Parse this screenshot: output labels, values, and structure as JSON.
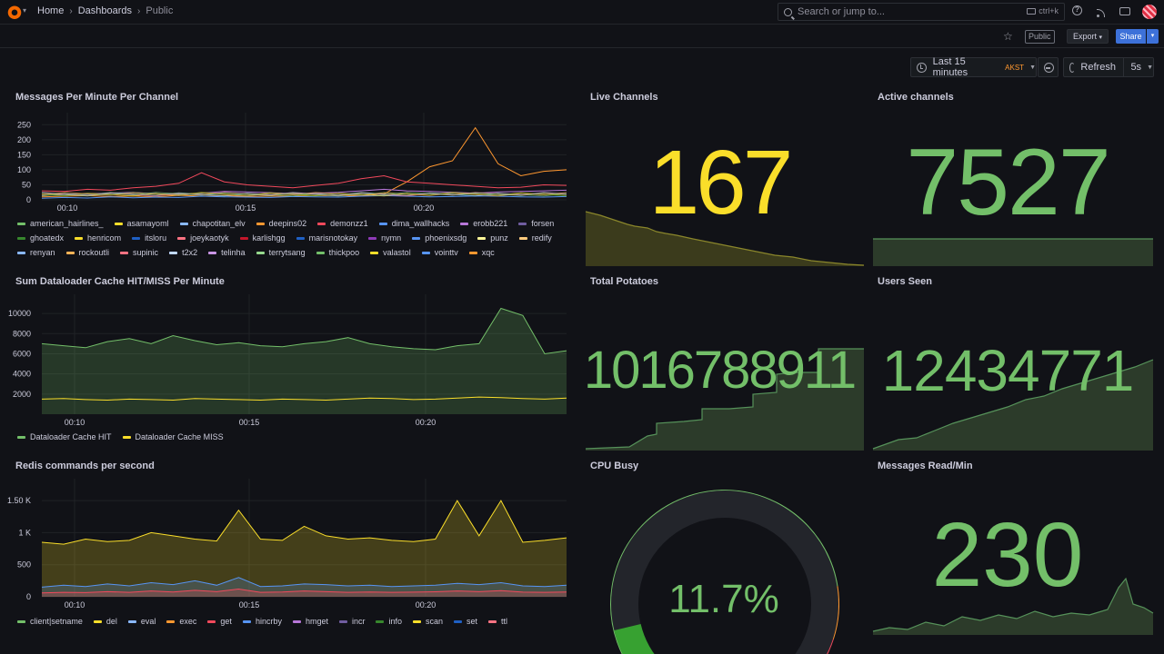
{
  "nav": {
    "breadcrumbs": [
      "Home",
      "Dashboards",
      "Public"
    ],
    "search_placeholder": "Search or jump to...",
    "search_shortcut": "ctrl+k"
  },
  "toolbar": {
    "public_badge": "Public",
    "export_label": "Export",
    "share_label": "Share"
  },
  "controls": {
    "time_range": "Last 15 minutes",
    "timezone": "AKST",
    "refresh_label": "Refresh",
    "refresh_interval": "5s"
  },
  "colors": {
    "green": "#73bf69",
    "yellow": "#fade2a",
    "orange": "#ff9830",
    "red": "#f2495c",
    "blue": "#5794f2",
    "purple": "#b877d9"
  },
  "panels": {
    "messages": {
      "title": "Messages Per Minute Per Channel",
      "legend": [
        {
          "name": "american_hairlines_",
          "color": "#73bf69"
        },
        {
          "name": "asamayoml",
          "color": "#fade2a"
        },
        {
          "name": "chapotitan_elv",
          "color": "#8ab8ff"
        },
        {
          "name": "deepins02",
          "color": "#ff9830"
        },
        {
          "name": "demonzz1",
          "color": "#f2495c"
        },
        {
          "name": "dima_wallhacks",
          "color": "#5794f2"
        },
        {
          "name": "erobb221",
          "color": "#b877d9"
        },
        {
          "name": "forsen",
          "color": "#705da0"
        },
        {
          "name": "ghoatedx",
          "color": "#37872d"
        },
        {
          "name": "henricom",
          "color": "#fade2a"
        },
        {
          "name": "itsloru",
          "color": "#1f60c4"
        },
        {
          "name": "joeykaotyk",
          "color": "#ff7383"
        },
        {
          "name": "karlishgg",
          "color": "#c4162a"
        },
        {
          "name": "marisnotokay",
          "color": "#1f60c4"
        },
        {
          "name": "nymn",
          "color": "#8f3bb8"
        },
        {
          "name": "phoenixsdg",
          "color": "#5794f2"
        },
        {
          "name": "punz",
          "color": "#fff899"
        },
        {
          "name": "redify",
          "color": "#ffcb7d"
        },
        {
          "name": "renyan",
          "color": "#8ab8ff"
        },
        {
          "name": "rockoutli",
          "color": "#ffb357"
        },
        {
          "name": "supinic",
          "color": "#ff7383"
        },
        {
          "name": "t2x2",
          "color": "#c0d8ff"
        },
        {
          "name": "telinha",
          "color": "#ca95e5"
        },
        {
          "name": "terrytsang",
          "color": "#96d98d"
        },
        {
          "name": "thickpoo",
          "color": "#73bf69"
        },
        {
          "name": "valastol",
          "color": "#fade2a"
        },
        {
          "name": "vointtv",
          "color": "#5794f2"
        },
        {
          "name": "xqc",
          "color": "#ff9830"
        }
      ]
    },
    "cache": {
      "title": "Sum Dataloader Cache HIT/MISS Per Minute",
      "legend": [
        {
          "name": "Dataloader Cache HIT",
          "color": "#73bf69"
        },
        {
          "name": "Dataloader Cache MISS",
          "color": "#fade2a"
        }
      ]
    },
    "redis": {
      "title": "Redis commands per second",
      "legend": [
        {
          "name": "client|setname",
          "color": "#73bf69"
        },
        {
          "name": "del",
          "color": "#fade2a"
        },
        {
          "name": "eval",
          "color": "#8ab8ff"
        },
        {
          "name": "exec",
          "color": "#ff9830"
        },
        {
          "name": "get",
          "color": "#f2495c"
        },
        {
          "name": "hincrby",
          "color": "#5794f2"
        },
        {
          "name": "hmget",
          "color": "#b877d9"
        },
        {
          "name": "incr",
          "color": "#705da0"
        },
        {
          "name": "info",
          "color": "#37872d"
        },
        {
          "name": "scan",
          "color": "#fade2a"
        },
        {
          "name": "set",
          "color": "#1f60c4"
        },
        {
          "name": "ttl",
          "color": "#ff7383"
        }
      ]
    },
    "live_channels": {
      "title": "Live Channels",
      "value": "167",
      "color": "#fade2a"
    },
    "active_channels": {
      "title": "Active channels",
      "value": "7527",
      "color": "#73bf69"
    },
    "total_potatoes": {
      "title": "Total Potatoes",
      "value": "1016788911",
      "color": "#73bf69"
    },
    "users_seen": {
      "title": "Users Seen",
      "value": "12434771",
      "color": "#73bf69"
    },
    "cpu_busy": {
      "title": "CPU Busy",
      "value": "11.7%",
      "percent": 11.7,
      "color": "#73bf69"
    },
    "messages_read": {
      "title": "Messages Read/Min",
      "value": "230",
      "color": "#73bf69"
    }
  },
  "chart_data": [
    {
      "type": "line",
      "title": "Messages Per Minute Per Channel",
      "x_ticks": [
        "00:10",
        "00:15",
        "00:20"
      ],
      "y_ticks": [
        0,
        50,
        100,
        150,
        200,
        250
      ],
      "ylim": [
        0,
        260
      ],
      "series": [
        {
          "name": "xqc",
          "values": [
            10,
            12,
            14,
            11,
            13,
            10,
            15,
            12,
            14,
            11,
            13,
            12,
            14,
            15,
            13,
            20,
            60,
            110,
            130,
            240,
            120,
            80,
            95,
            100
          ]
        },
        {
          "name": "demonzz1",
          "values": [
            30,
            28,
            35,
            32,
            40,
            45,
            55,
            90,
            60,
            50,
            45,
            40,
            48,
            55,
            70,
            80,
            60,
            55,
            50,
            45,
            40,
            42,
            50,
            48
          ]
        },
        {
          "name": "forsen",
          "values": [
            15,
            18,
            20,
            22,
            25,
            20,
            18,
            22,
            28,
            26,
            24,
            20,
            22,
            25,
            30,
            35,
            30,
            28,
            25,
            22,
            26,
            28,
            30,
            32
          ]
        },
        {
          "name": "nymn",
          "values": [
            5,
            8,
            6,
            10,
            7,
            9,
            8,
            12,
            10,
            9,
            8,
            11,
            10,
            9,
            12,
            14,
            12,
            10,
            11,
            13,
            12,
            10,
            9,
            11
          ]
        }
      ]
    },
    {
      "type": "area",
      "title": "Sum Dataloader Cache HIT/MISS Per Minute",
      "x_ticks": [
        "00:10",
        "00:15",
        "00:20"
      ],
      "y_ticks": [
        2000,
        4000,
        6000,
        8000,
        10000
      ],
      "ylim": [
        0,
        11000
      ],
      "series": [
        {
          "name": "Dataloader Cache HIT",
          "values": [
            7000,
            6800,
            6600,
            7200,
            7500,
            7000,
            7800,
            7300,
            6900,
            7100,
            6800,
            6700,
            7000,
            7200,
            7600,
            7000,
            6700,
            6500,
            6400,
            6800,
            7000,
            10500,
            9800,
            6000,
            6300
          ]
        },
        {
          "name": "Dataloader Cache MISS",
          "values": [
            1500,
            1550,
            1450,
            1400,
            1500,
            1450,
            1400,
            1550,
            1500,
            1450,
            1400,
            1500,
            1450,
            1400,
            1500,
            1600,
            1550,
            1450,
            1500,
            1600,
            1700,
            1650,
            1550,
            1500,
            1600
          ]
        }
      ]
    },
    {
      "type": "area",
      "title": "Redis commands per second",
      "x_ticks": [
        "00:10",
        "00:15",
        "00:20"
      ],
      "y_ticks": [
        "0",
        "500",
        "1 K",
        "1.50 K"
      ],
      "ylim": [
        0,
        1700
      ],
      "series": [
        {
          "name": "scan",
          "values": [
            850,
            820,
            900,
            860,
            880,
            1000,
            950,
            900,
            870,
            1350,
            900,
            880,
            1100,
            950,
            900,
            920,
            880,
            860,
            900,
            1500,
            950,
            1500,
            850,
            880,
            920
          ]
        },
        {
          "name": "hmget",
          "values": [
            150,
            180,
            160,
            200,
            170,
            220,
            190,
            250,
            180,
            300,
            160,
            170,
            200,
            190,
            170,
            180,
            160,
            170,
            180,
            210,
            190,
            220,
            170,
            160,
            180
          ]
        },
        {
          "name": "get",
          "values": [
            60,
            70,
            65,
            80,
            70,
            90,
            75,
            100,
            80,
            120,
            70,
            75,
            90,
            80,
            70,
            75,
            70,
            72,
            78,
            90,
            80,
            95,
            72,
            70,
            75
          ]
        }
      ]
    },
    {
      "type": "gauge",
      "title": "CPU Busy",
      "value": 11.7,
      "unit": "%",
      "range": [
        0,
        100
      ],
      "thresholds": [
        {
          "value": 0,
          "color": "#73bf69"
        },
        {
          "value": 80,
          "color": "#ff9830"
        },
        {
          "value": 90,
          "color": "#f2495c"
        }
      ]
    }
  ]
}
